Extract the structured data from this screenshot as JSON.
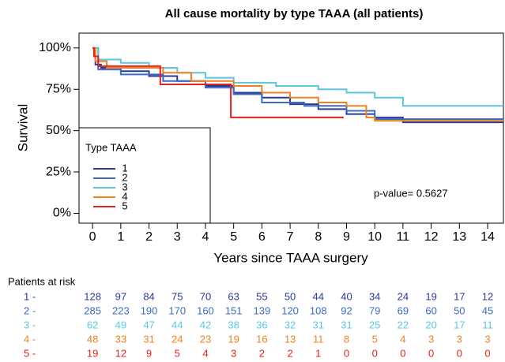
{
  "chart_data": {
    "type": "line",
    "step": true,
    "title": "All cause mortality by type TAAA (all patients)",
    "xlabel": "Years since TAAA surgery",
    "ylabel": "Survival",
    "xlim": [
      -0.48,
      14.56
    ],
    "ylim": [
      -6,
      109
    ],
    "xticks": [
      0,
      1,
      2,
      3,
      4,
      5,
      6,
      7,
      8,
      9,
      10,
      11,
      12,
      13,
      14
    ],
    "yticks": [
      {
        "value": 0,
        "label": "0%"
      },
      {
        "value": 25,
        "label": "25%"
      },
      {
        "value": 50,
        "label": "50%"
      },
      {
        "value": 75,
        "label": "75%"
      },
      {
        "value": 100,
        "label": "100%"
      }
    ],
    "legend_title": "Type TAAA",
    "annotation": "p-value= 0.5627",
    "series": [
      {
        "name": "1",
        "color": "#2b3a96",
        "x": [
          0,
          0.1,
          0.3,
          1,
          2,
          3,
          4,
          5,
          6,
          7,
          8,
          9,
          10,
          11,
          14.56
        ],
        "values": [
          100,
          90,
          88,
          86,
          83,
          80,
          77,
          73,
          70,
          66,
          63,
          60,
          58,
          55,
          55
        ]
      },
      {
        "name": "2",
        "color": "#3b6cc4",
        "x": [
          0,
          0.2,
          1,
          2.5,
          4,
          5,
          6,
          7.5,
          9,
          10,
          14.56
        ],
        "values": [
          100,
          87,
          84,
          80,
          76,
          72,
          67,
          65,
          62,
          57,
          57
        ]
      },
      {
        "name": "3",
        "color": "#5cc6e0",
        "x": [
          0,
          0.2,
          1,
          2,
          3,
          4,
          5,
          6.5,
          8,
          9,
          10,
          11,
          14.56
        ],
        "values": [
          100,
          93,
          91,
          88,
          85,
          82,
          79,
          77,
          75,
          73,
          70,
          65,
          65
        ]
      },
      {
        "name": "4",
        "color": "#f0801e",
        "x": [
          0,
          0.1,
          0.5,
          2.5,
          3.5,
          5,
          6,
          7,
          8,
          9,
          9.7,
          10,
          14.56
        ],
        "values": [
          100,
          92,
          88,
          85,
          80,
          77,
          73,
          70,
          67,
          65,
          58,
          56,
          56
        ]
      },
      {
        "name": "5",
        "color": "#e3221f",
        "x": [
          0,
          0.05,
          0.2,
          2.4,
          4.9,
          8.9
        ],
        "values": [
          100,
          95,
          89,
          78,
          58,
          58
        ]
      }
    ],
    "at_risk": {
      "title": "Patients at risk",
      "rows": [
        {
          "label": "1 -",
          "values": [
            128,
            97,
            84,
            75,
            70,
            63,
            55,
            50,
            44,
            40,
            34,
            24,
            19,
            17,
            12
          ]
        },
        {
          "label": "2 -",
          "values": [
            285,
            223,
            190,
            170,
            160,
            151,
            139,
            120,
            108,
            92,
            79,
            69,
            60,
            50,
            45
          ]
        },
        {
          "label": "3 -",
          "values": [
            62,
            49,
            47,
            44,
            42,
            38,
            36,
            32,
            31,
            31,
            25,
            22,
            20,
            17,
            11
          ]
        },
        {
          "label": "4 -",
          "values": [
            48,
            33,
            31,
            24,
            23,
            19,
            16,
            13,
            11,
            8,
            5,
            4,
            3,
            3,
            3
          ]
        },
        {
          "label": "5 -",
          "values": [
            19,
            12,
            9,
            5,
            4,
            3,
            2,
            2,
            1,
            0,
            0,
            0,
            0,
            0,
            0
          ]
        }
      ]
    }
  }
}
